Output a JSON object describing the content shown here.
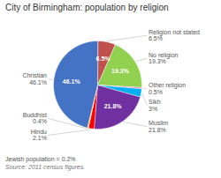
{
  "chart_data": {
    "type": "pie",
    "title": "City of Birmingham: population by religion",
    "categories": [
      "Religion not stated",
      "No religion",
      "Other religion",
      "Sikh",
      "Muslim",
      "Hindu",
      "Buddhist",
      "Christian"
    ],
    "values": [
      6.5,
      19.3,
      0.5,
      3.0,
      21.8,
      2.1,
      0.4,
      46.1
    ],
    "value_labels": [
      "6.5%",
      "19.3%",
      "0.5%",
      "3%",
      "21.8%",
      "2.1%",
      "0.4%",
      "46.1%"
    ],
    "colors": [
      "#C0504D",
      "#92D050",
      "#FF69B4",
      "#00B0F0",
      "#7030A0",
      "#FF0000",
      "#FFA500",
      "#4472C4"
    ],
    "data_labels": true,
    "annotations": [
      "Jewish population = 0.2%",
      "Source: 2011 census figures."
    ]
  }
}
